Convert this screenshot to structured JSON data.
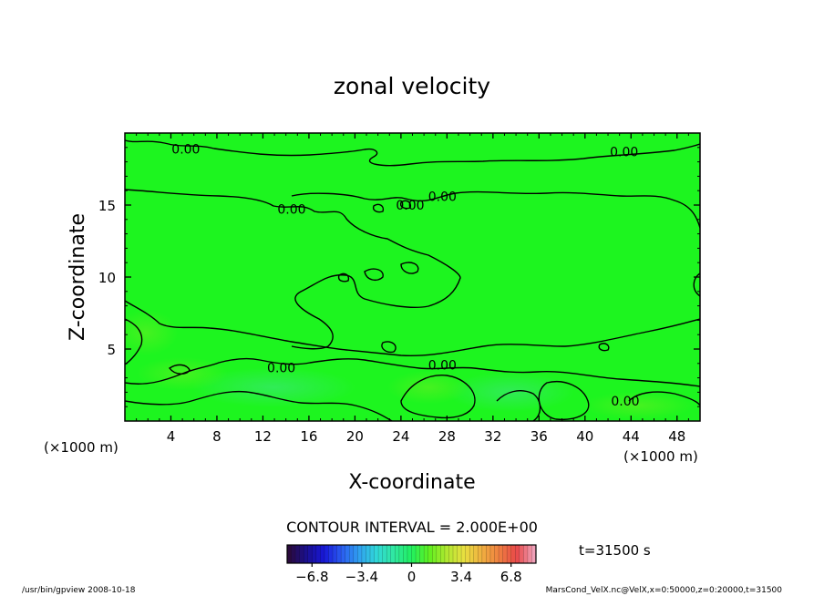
{
  "chart_data": {
    "type": "heatmap",
    "title": "zonal velocity",
    "xlabel": "X-coordinate",
    "ylabel": "Z-coordinate",
    "x_unit_left": "(×1000 m)",
    "x_unit_right": "(×1000 m)",
    "x_ticks": [
      4,
      8,
      12,
      16,
      20,
      24,
      28,
      32,
      36,
      40,
      44,
      48
    ],
    "y_ticks": [
      5,
      10,
      15
    ],
    "xlim": [
      0,
      50
    ],
    "ylim": [
      0,
      20
    ],
    "contour_interval_label": "CONTOUR INTERVAL = 2.000E+00",
    "contour_labels": [
      {
        "text": "0.00",
        "x": 5.3,
        "y": 18.9
      },
      {
        "text": "0.00",
        "x": 43.4,
        "y": 18.7
      },
      {
        "text": "0.00",
        "x": 27.6,
        "y": 15.6
      },
      {
        "text": "0.00",
        "x": 14.5,
        "y": 14.7
      },
      {
        "text": "0.00",
        "x": 24.8,
        "y": 15.0
      },
      {
        "text": "0.00",
        "x": 13.6,
        "y": 3.7
      },
      {
        "text": "0.00",
        "x": 27.6,
        "y": 3.9
      },
      {
        "text": "0.00",
        "x": 43.5,
        "y": 1.4
      }
    ],
    "time_label": "t=31500 s",
    "colorbar": {
      "min": -8.5,
      "max": 8.5,
      "tick_labels": [
        "−6.8",
        "−3.4",
        "0",
        "3.4",
        "6.8"
      ],
      "tick_values": [
        -6.8,
        -3.4,
        0,
        3.4,
        6.8
      ],
      "colors": [
        "#2a0a3c",
        "#1a1090",
        "#1818d8",
        "#2a5cf0",
        "#30a0f0",
        "#30d8d8",
        "#30e8a0",
        "#20f060",
        "#60f020",
        "#b0e830",
        "#e8e040",
        "#f0b040",
        "#f08040",
        "#e84848",
        "#f0a0b8"
      ]
    },
    "field_color": "#1df51f",
    "footer_left": "/usr/bin/gpview   2008-10-18",
    "footer_right": "MarsCond_VelX.nc@VelX,x=0:50000,z=0:20000,t=31500"
  }
}
